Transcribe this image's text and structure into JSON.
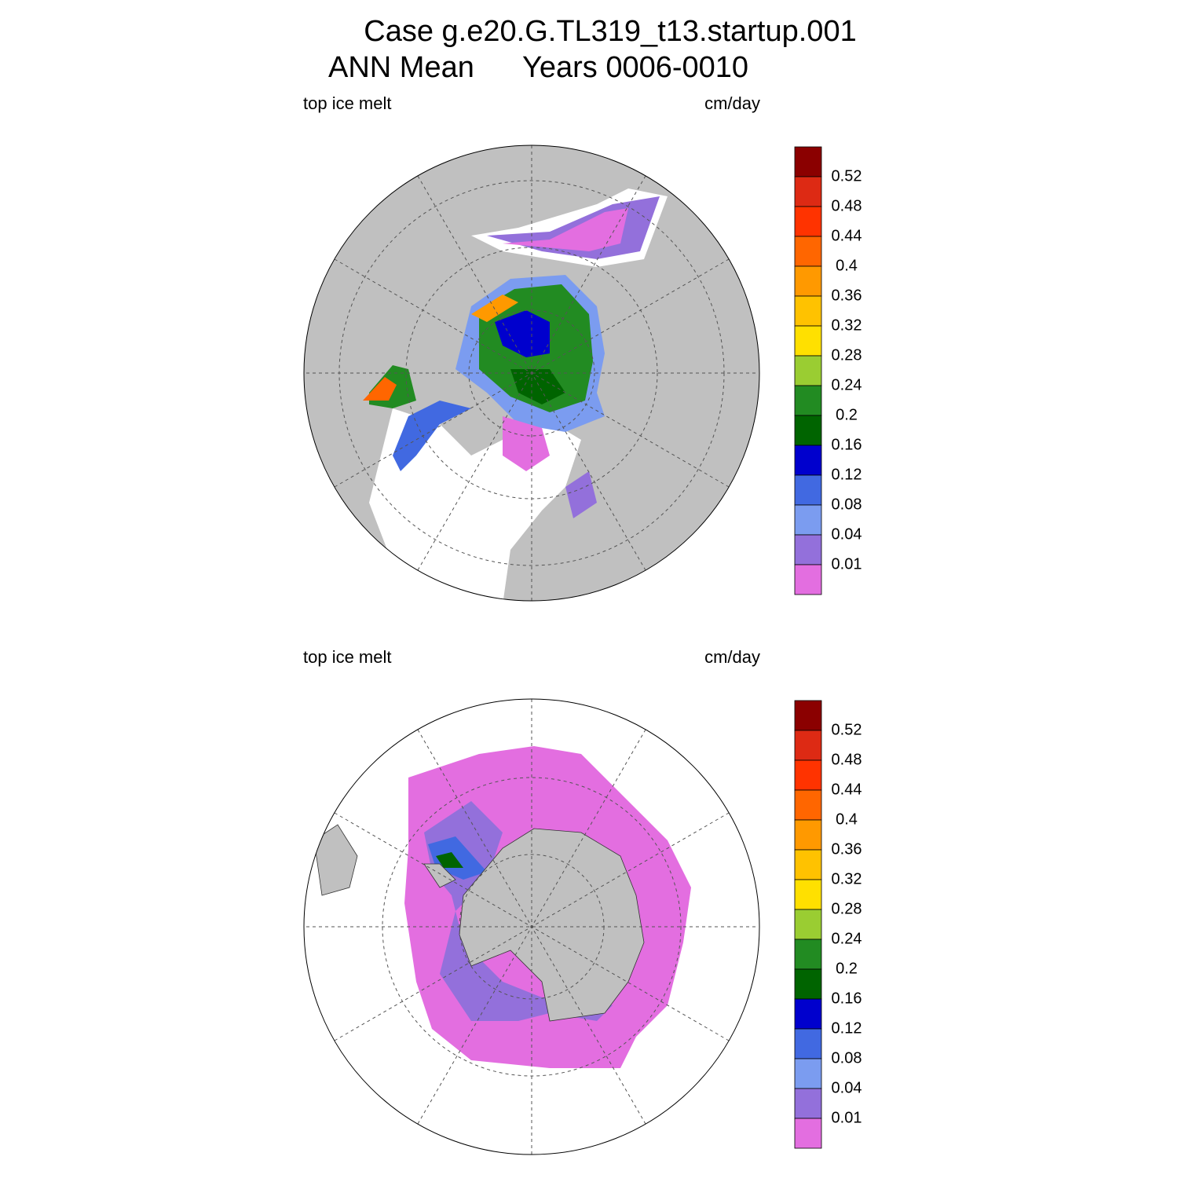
{
  "header": {
    "title": "Case g.e20.G.TL319_t13.startup.001",
    "subtitle_left": "ANN Mean",
    "subtitle_right": "Years 0006-0010"
  },
  "panels": [
    {
      "left_label": "top ice melt",
      "right_label": "cm/day",
      "colorbar": {
        "levels": [
          0.52,
          0.48,
          0.44,
          0.4,
          0.36,
          0.32,
          0.28,
          0.24,
          0.2,
          0.16,
          0.12,
          0.08,
          0.04,
          0.01
        ],
        "colors": [
          "#8b0000",
          "#dd2a14",
          "#ff3300",
          "#ff6600",
          "#ff9900",
          "#ffc200",
          "#ffe000",
          "#9acd32",
          "#228b22",
          "#006400",
          "#0000cd",
          "#4169e1",
          "#7b9cf0",
          "#9370db",
          "#e36ee0"
        ]
      }
    },
    {
      "left_label": "top ice melt",
      "right_label": "cm/day",
      "colorbar": {
        "levels": [
          0.52,
          0.48,
          0.44,
          0.4,
          0.36,
          0.32,
          0.28,
          0.24,
          0.2,
          0.16,
          0.12,
          0.08,
          0.04,
          0.01
        ],
        "colors": [
          "#8b0000",
          "#dd2a14",
          "#ff3300",
          "#ff6600",
          "#ff9900",
          "#ffc200",
          "#ffe000",
          "#9acd32",
          "#228b22",
          "#006400",
          "#0000cd",
          "#4169e1",
          "#7b9cf0",
          "#9370db",
          "#e36ee0"
        ]
      }
    }
  ]
}
